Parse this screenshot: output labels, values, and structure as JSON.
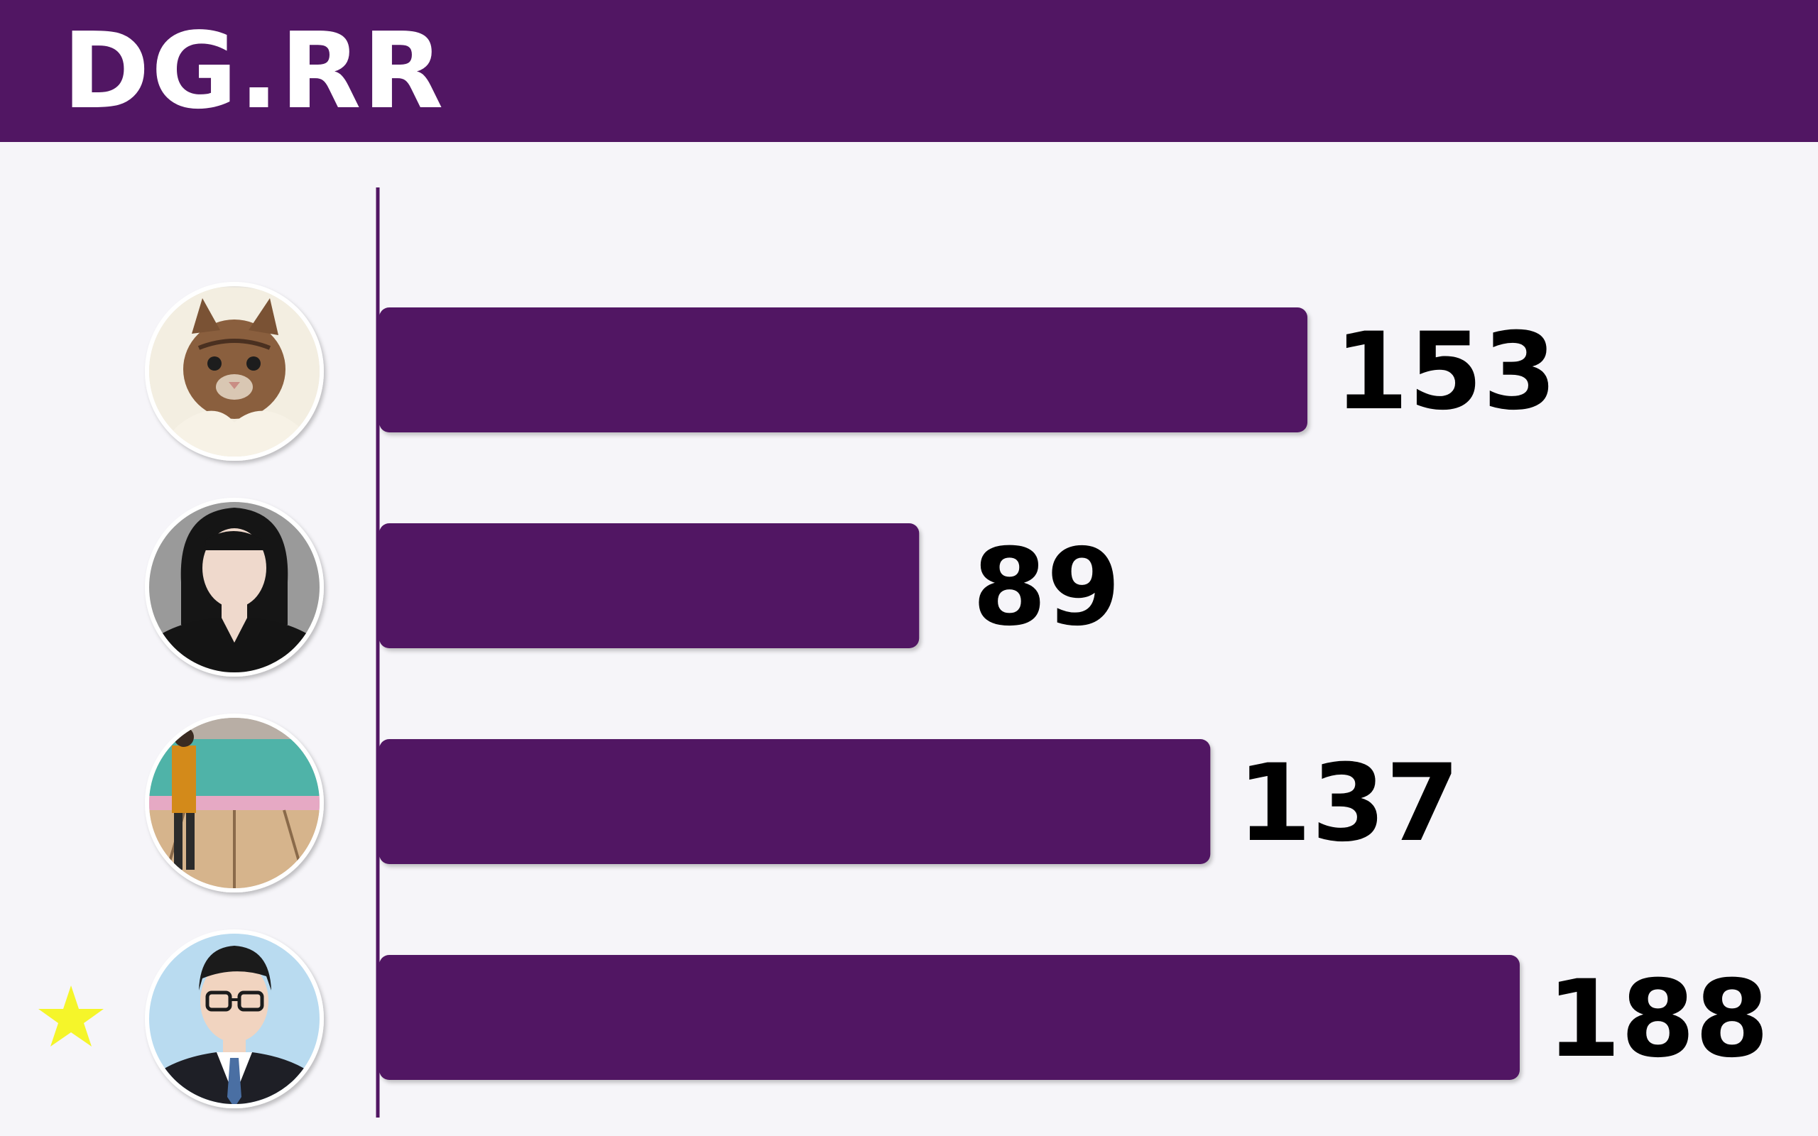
{
  "header": {
    "brand": "DG.RR"
  },
  "colors": {
    "header_bg": "#511663",
    "bar": "#511663",
    "background": "#f6f5f9",
    "value_text": "#000000",
    "star": "#f5f52a"
  },
  "chart_data": {
    "type": "bar",
    "orientation": "horizontal",
    "categories": [
      "",
      "",
      "",
      ""
    ],
    "values": [
      153,
      89,
      137,
      188
    ],
    "row_icons": [
      "kitten-avatar",
      "woman-portrait-avatar",
      "bowling-alley-avatar",
      "man-with-glasses-avatar"
    ],
    "highlight_marker": {
      "index": 3,
      "icon": "star-icon"
    },
    "xlim": [
      0,
      210
    ],
    "grid": false,
    "legend": "none"
  }
}
